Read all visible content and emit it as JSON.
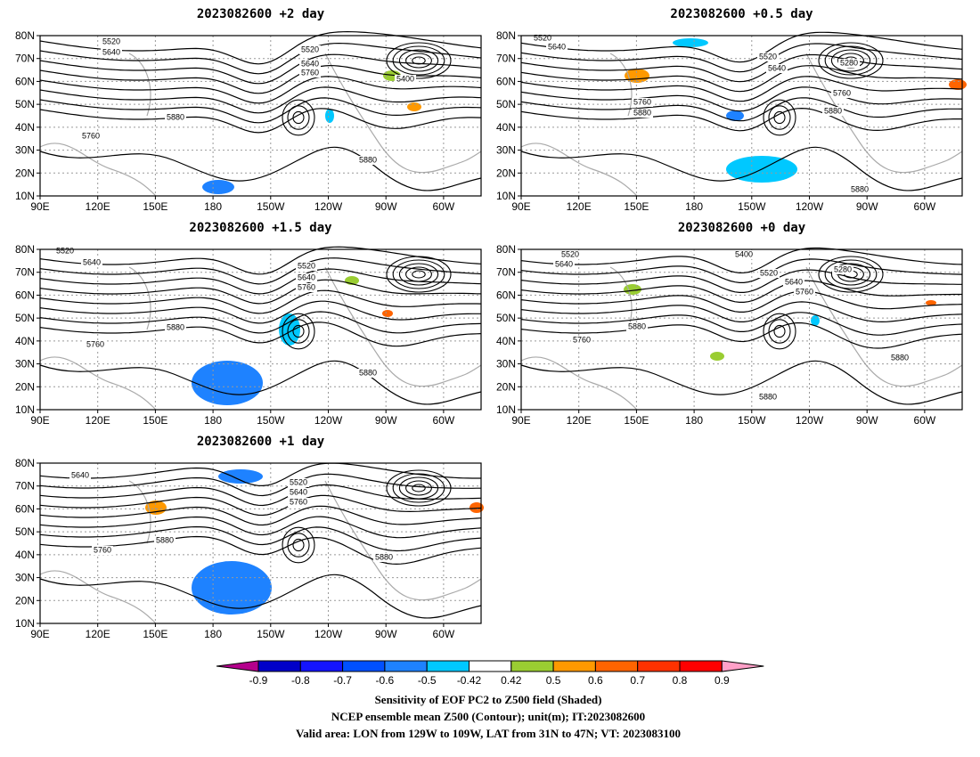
{
  "panels": [
    {
      "title": "2023082600 +2 day",
      "contour_labels": [
        "5520",
        "5640",
        "5520",
        "5640",
        "5760",
        "5400",
        "5880",
        "5760",
        "5880"
      ]
    },
    {
      "title": "2023082600 +0.5 day",
      "contour_labels": [
        "5520",
        "5640",
        "5520",
        "5640",
        "5280",
        "5760",
        "5760",
        "5880",
        "5880",
        "5880"
      ]
    },
    {
      "title": "2023082600 +1.5 day",
      "contour_labels": [
        "5520",
        "5640",
        "5520",
        "5640",
        "5760",
        "5880",
        "5760",
        "5880"
      ]
    },
    {
      "title": "2023082600 +0 day",
      "contour_labels": [
        "5400",
        "5520",
        "5640",
        "5520",
        "5640",
        "5760",
        "5280",
        "5760",
        "5880",
        "5880",
        "5880"
      ]
    },
    {
      "title": "2023082600 +1 day",
      "contour_labels": [
        "5640",
        "5520",
        "5640",
        "5760",
        "5880",
        "5760",
        "5880"
      ]
    }
  ],
  "lat_ticks": [
    "80N",
    "70N",
    "60N",
    "50N",
    "40N",
    "30N",
    "20N",
    "10N"
  ],
  "lon_ticks": [
    "90E",
    "120E",
    "150E",
    "180",
    "150W",
    "120W",
    "90W",
    "60W"
  ],
  "colorbar": {
    "ticks": [
      "-0.9",
      "-0.8",
      "-0.7",
      "-0.6",
      "-0.5",
      "-0.42",
      "0.42",
      "0.5",
      "0.6",
      "0.7",
      "0.8",
      "0.9"
    ],
    "colors": [
      "#b4008c",
      "#0000c8",
      "#1414ff",
      "#0050ff",
      "#1e82ff",
      "#00c8ff",
      "#ffffff",
      "#9acd32",
      "#ff9900",
      "#ff6400",
      "#ff3200",
      "#ff0000",
      "#ffa0c8"
    ]
  },
  "caption": [
    "Sensitivity of EOF PC2 to Z500 field (Shaded)",
    "NCEP ensemble mean Z500 (Contour); unit(m); IT:2023082600",
    "Valid area: LON from 129W to 109W, LAT from 31N to 47N; VT: 2023083100"
  ]
}
